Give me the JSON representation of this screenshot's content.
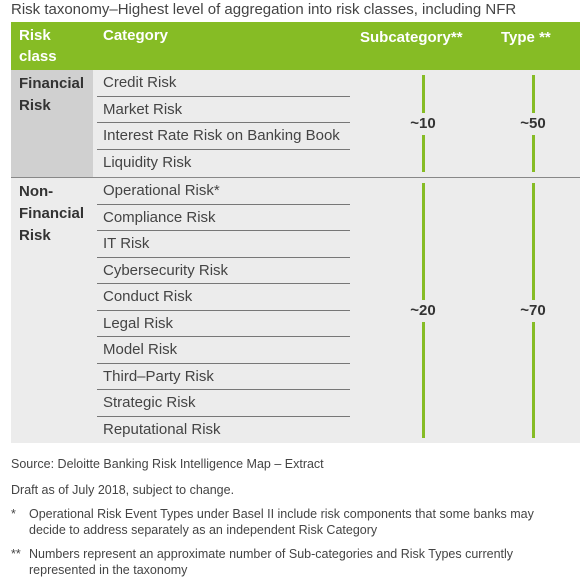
{
  "title": "Risk taxonomy–Highest level of aggregation into risk classes, including NFR",
  "table": {
    "header": [
      "Risk class",
      "Category",
      "Subcategory**",
      "Type **"
    ],
    "groups": [
      {
        "risk_class": "Financial Risk",
        "categories": [
          "Credit Risk",
          "Market Risk",
          "Interest Rate Risk on Banking Book",
          "Liquidity Risk"
        ],
        "subcategory": "~10",
        "type": "~50"
      },
      {
        "risk_class": "Non-Financial Risk",
        "categories": [
          "Operational Risk*",
          "Compliance Risk",
          "IT Risk",
          "Cybersecurity Risk",
          "Conduct Risk",
          "Legal Risk",
          "Model Risk",
          "Third–Party Risk",
          "Strategic Risk",
          "Reputational Risk"
        ],
        "subcategory": "~20",
        "type": "~70"
      }
    ]
  },
  "notes": {
    "source": "Source: Deloitte Banking Risk Intelligence Map – Extract",
    "draft": "Draft as of July 2018, subject to change.",
    "footnotes": [
      {
        "marker": "*",
        "text": "Operational Risk Event Types under Basel II include risk components that some banks may decide to address separately as an independent Risk Category"
      },
      {
        "marker": "**",
        "text": "Numbers represent an approximate number of Sub-categories and Risk Types currently represented  in the taxonomy"
      }
    ]
  }
}
